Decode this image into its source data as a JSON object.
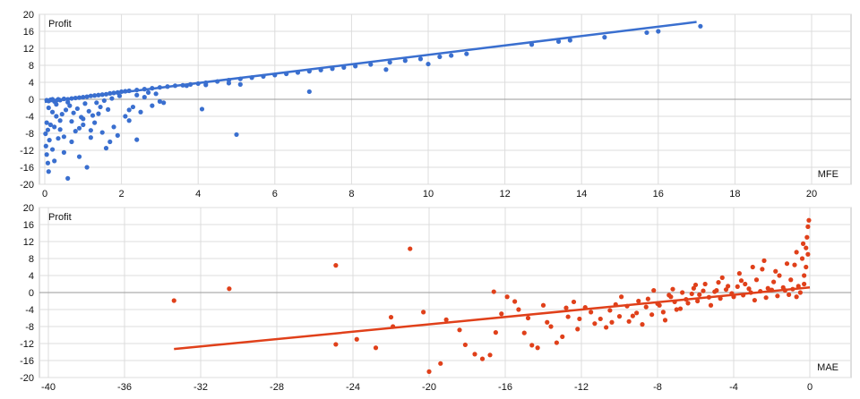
{
  "chart_data": [
    {
      "type": "scatter",
      "ylabel": "Profit",
      "xlabel": "MFE",
      "xlim": [
        0,
        20
      ],
      "ylim": [
        -20,
        20
      ],
      "xticks": [
        "0",
        "2",
        "4",
        "6",
        "8",
        "10",
        "12",
        "14",
        "16",
        "18",
        "20"
      ],
      "yticks": [
        "20",
        "16",
        "12",
        "8",
        "4",
        "0",
        "-4",
        "-8",
        "-12",
        "-16",
        "-20"
      ],
      "grid": true,
      "colors": {
        "points": "#3a6fcf",
        "trend": "#3a6fcf"
      },
      "trendline": {
        "x": [
          0,
          17.0
        ],
        "y": [
          -0.6,
          18.2
        ]
      },
      "series": [
        {
          "values": [
            [
              0.05,
              -0.2
            ],
            [
              0.1,
              -0.4
            ],
            [
              0.15,
              -0.1
            ],
            [
              0.2,
              0.0
            ],
            [
              0.25,
              -0.5
            ],
            [
              0.3,
              -0.3
            ],
            [
              0.35,
              0.0
            ],
            [
              0.4,
              -0.2
            ],
            [
              0.5,
              0.1
            ],
            [
              0.6,
              0.0
            ],
            [
              0.7,
              0.2
            ],
            [
              0.8,
              0.3
            ],
            [
              0.9,
              0.4
            ],
            [
              1.0,
              0.5
            ],
            [
              1.1,
              0.6
            ],
            [
              1.2,
              0.8
            ],
            [
              1.3,
              0.9
            ],
            [
              1.4,
              1.0
            ],
            [
              1.5,
              1.1
            ],
            [
              1.6,
              1.2
            ],
            [
              1.7,
              1.4
            ],
            [
              1.8,
              1.5
            ],
            [
              1.9,
              1.6
            ],
            [
              2.0,
              1.8
            ],
            [
              2.1,
              1.9
            ],
            [
              2.2,
              2.0
            ],
            [
              2.4,
              2.2
            ],
            [
              2.6,
              2.4
            ],
            [
              2.8,
              2.6
            ],
            [
              3.0,
              2.8
            ],
            [
              3.2,
              3.0
            ],
            [
              3.4,
              3.2
            ],
            [
              3.6,
              3.3
            ],
            [
              3.8,
              3.5
            ],
            [
              4.0,
              3.7
            ],
            [
              4.2,
              3.9
            ],
            [
              4.5,
              4.2
            ],
            [
              4.8,
              4.5
            ],
            [
              5.1,
              4.8
            ],
            [
              5.4,
              5.1
            ],
            [
              5.7,
              5.4
            ],
            [
              6.0,
              5.7
            ],
            [
              6.3,
              6.0
            ],
            [
              6.6,
              6.3
            ],
            [
              6.9,
              6.6
            ],
            [
              7.2,
              6.9
            ],
            [
              7.5,
              7.2
            ],
            [
              7.8,
              7.5
            ],
            [
              8.1,
              7.8
            ],
            [
              8.5,
              8.2
            ],
            [
              9.0,
              8.7
            ],
            [
              9.4,
              9.1
            ],
            [
              9.8,
              9.5
            ],
            [
              10.3,
              10.0
            ],
            [
              10.6,
              10.3
            ],
            [
              11.0,
              10.7
            ],
            [
              12.7,
              12.9
            ],
            [
              13.4,
              13.6
            ],
            [
              13.7,
              13.9
            ],
            [
              14.6,
              14.6
            ],
            [
              15.7,
              15.7
            ],
            [
              16.0,
              16.0
            ],
            [
              17.1,
              17.2
            ],
            [
              10.0,
              8.3
            ],
            [
              8.9,
              7.0
            ],
            [
              6.9,
              1.8
            ],
            [
              5.1,
              3.5
            ],
            [
              4.8,
              3.8
            ],
            [
              4.2,
              3.4
            ],
            [
              3.7,
              3.2
            ],
            [
              2.7,
              1.6
            ],
            [
              2.9,
              1.3
            ],
            [
              3.1,
              -0.8
            ],
            [
              2.4,
              1.0
            ],
            [
              0.02,
              -8.1
            ],
            [
              0.03,
              -11.0
            ],
            [
              0.05,
              -13.0
            ],
            [
              0.08,
              -15.0
            ],
            [
              0.1,
              -17.0
            ],
            [
              0.2,
              -11.8
            ],
            [
              0.25,
              -14.5
            ],
            [
              0.35,
              -9.2
            ],
            [
              0.4,
              -7.1
            ],
            [
              0.5,
              -12.5
            ],
            [
              0.6,
              -18.6
            ],
            [
              0.7,
              -10.0
            ],
            [
              0.8,
              -7.5
            ],
            [
              0.9,
              -13.5
            ],
            [
              1.0,
              -6.0
            ],
            [
              1.1,
              -16.0
            ],
            [
              1.2,
              -9.0
            ],
            [
              1.3,
              -5.5
            ],
            [
              1.5,
              -7.8
            ],
            [
              1.6,
              -11.5
            ],
            [
              1.7,
              -10.0
            ],
            [
              1.8,
              -6.5
            ],
            [
              1.9,
              -8.5
            ],
            [
              2.1,
              -4.0
            ],
            [
              2.2,
              -2.5
            ],
            [
              2.3,
              -1.8
            ],
            [
              2.4,
              -9.5
            ],
            [
              2.2,
              -5.0
            ],
            [
              2.5,
              -3.0
            ],
            [
              2.8,
              -1.5
            ],
            [
              3.0,
              -0.5
            ],
            [
              4.1,
              -2.3
            ],
            [
              5.0,
              -8.3
            ],
            [
              0.1,
              -2.0
            ],
            [
              0.2,
              -3.0
            ],
            [
              0.3,
              -4.0
            ],
            [
              0.4,
              -5.0
            ],
            [
              0.15,
              -6.0
            ],
            [
              0.25,
              -6.5
            ],
            [
              0.45,
              -3.5
            ],
            [
              0.55,
              -2.5
            ],
            [
              0.65,
              -1.5
            ],
            [
              0.75,
              -3.2
            ],
            [
              0.85,
              -2.2
            ],
            [
              0.95,
              -4.2
            ],
            [
              1.05,
              -1.0
            ],
            [
              1.15,
              -2.8
            ],
            [
              1.25,
              -3.8
            ],
            [
              1.35,
              -0.8
            ],
            [
              1.45,
              -1.8
            ],
            [
              1.55,
              -0.3
            ],
            [
              1.65,
              -2.4
            ],
            [
              1.75,
              0.2
            ],
            [
              0.05,
              -5.5
            ],
            [
              0.08,
              -7.2
            ],
            [
              0.12,
              -9.6
            ],
            [
              0.3,
              -1.2
            ],
            [
              0.6,
              -0.7
            ],
            [
              1.95,
              0.8
            ],
            [
              2.6,
              0.5
            ],
            [
              0.7,
              -5.2
            ],
            [
              1.0,
              -4.6
            ],
            [
              1.4,
              -3.4
            ],
            [
              0.5,
              -8.8
            ],
            [
              0.9,
              -6.8
            ],
            [
              1.2,
              -7.3
            ]
          ]
        }
      ]
    },
    {
      "type": "scatter",
      "ylabel": "Profit",
      "xlabel": "MAE",
      "xlim": [
        -40,
        0
      ],
      "ylim": [
        -20,
        20
      ],
      "xticks": [
        "-40",
        "-36",
        "-32",
        "-28",
        "-24",
        "-20",
        "-16",
        "-12",
        "-8",
        "-4",
        "0"
      ],
      "yticks": [
        "20",
        "16",
        "12",
        "8",
        "4",
        "0",
        "-4",
        "-8",
        "-12",
        "-16",
        "-20"
      ],
      "grid": true,
      "colors": {
        "points": "#e0401a",
        "trend": "#e0401a"
      },
      "trendline": {
        "x": [
          -33.4,
          0
        ],
        "y": [
          -13.3,
          1.2
        ]
      },
      "series": [
        {
          "values": [
            [
              -33.4,
              -1.9
            ],
            [
              -30.5,
              0.9
            ],
            [
              -24.9,
              6.4
            ],
            [
              -24.9,
              -12.2
            ],
            [
              -23.8,
              -11.0
            ],
            [
              -22.8,
              -13.0
            ],
            [
              -22.0,
              -5.8
            ],
            [
              -21.9,
              -8.0
            ],
            [
              -21.0,
              10.3
            ],
            [
              -20.3,
              -4.6
            ],
            [
              -20.0,
              -18.6
            ],
            [
              -19.4,
              -16.7
            ],
            [
              -19.1,
              -6.4
            ],
            [
              -18.4,
              -8.8
            ],
            [
              -18.1,
              -12.3
            ],
            [
              -17.6,
              -14.5
            ],
            [
              -17.2,
              -15.6
            ],
            [
              -16.8,
              -14.7
            ],
            [
              -16.5,
              -9.4
            ],
            [
              -16.2,
              -5.0
            ],
            [
              -16.6,
              0.2
            ],
            [
              -15.9,
              -1.0
            ],
            [
              -15.5,
              -2.1
            ],
            [
              -15.3,
              -4.0
            ],
            [
              -15.0,
              -9.5
            ],
            [
              -14.6,
              -12.4
            ],
            [
              -14.3,
              -13.0
            ],
            [
              -14.0,
              -3.0
            ],
            [
              -13.6,
              -8.0
            ],
            [
              -13.3,
              -11.8
            ],
            [
              -13.0,
              -10.4
            ],
            [
              -12.7,
              -5.7
            ],
            [
              -12.4,
              -2.2
            ],
            [
              -12.1,
              -6.2
            ],
            [
              -11.8,
              -3.5
            ],
            [
              -11.3,
              -7.3
            ],
            [
              -11.0,
              -6.2
            ],
            [
              -10.7,
              -8.2
            ],
            [
              -10.5,
              -4.2
            ],
            [
              -10.2,
              -2.8
            ],
            [
              -9.9,
              -1.0
            ],
            [
              -9.6,
              -3.2
            ],
            [
              -9.3,
              -5.5
            ],
            [
              -9.0,
              -2.0
            ],
            [
              -8.8,
              -7.5
            ],
            [
              -8.5,
              -1.5
            ],
            [
              -8.2,
              0.5
            ],
            [
              -7.9,
              -3.0
            ],
            [
              -7.6,
              -6.5
            ],
            [
              -7.3,
              -1.0
            ],
            [
              -7.0,
              -4.0
            ],
            [
              -6.7,
              0.0
            ],
            [
              -6.4,
              -2.5
            ],
            [
              -6.1,
              1.0
            ],
            [
              -5.8,
              -0.5
            ],
            [
              -5.5,
              2.0
            ],
            [
              -5.2,
              -3.0
            ],
            [
              -4.9,
              0.5
            ],
            [
              -4.6,
              3.5
            ],
            [
              -4.3,
              1.5
            ],
            [
              -4.0,
              -1.0
            ],
            [
              -3.7,
              4.5
            ],
            [
              -3.4,
              2.0
            ],
            [
              -3.1,
              0.0
            ],
            [
              -2.8,
              3.0
            ],
            [
              -2.5,
              5.5
            ],
            [
              -2.2,
              1.0
            ],
            [
              -1.9,
              2.5
            ],
            [
              -1.6,
              4.0
            ],
            [
              -1.3,
              0.5
            ],
            [
              -1.0,
              3.0
            ],
            [
              -0.8,
              6.5
            ],
            [
              -0.6,
              1.5
            ],
            [
              -0.4,
              8.0
            ],
            [
              -0.3,
              4.0
            ],
            [
              -0.2,
              10.5
            ],
            [
              -0.15,
              13.0
            ],
            [
              -0.1,
              15.5
            ],
            [
              -0.05,
              17.0
            ],
            [
              -0.1,
              9.0
            ],
            [
              -0.2,
              6.0
            ],
            [
              -0.3,
              2.0
            ],
            [
              -0.5,
              0.0
            ],
            [
              -0.7,
              -1.0
            ],
            [
              -0.9,
              0.8
            ],
            [
              -1.1,
              -0.5
            ],
            [
              -1.4,
              1.2
            ],
            [
              -1.7,
              -0.8
            ],
            [
              -2.0,
              0.6
            ],
            [
              -2.3,
              -1.2
            ],
            [
              -2.6,
              0.3
            ],
            [
              -2.9,
              -1.8
            ],
            [
              -3.2,
              0.9
            ],
            [
              -3.5,
              -0.6
            ],
            [
              -3.8,
              1.4
            ],
            [
              -4.1,
              -0.2
            ],
            [
              -4.4,
              0.7
            ],
            [
              -4.7,
              -1.4
            ],
            [
              -5.0,
              0.2
            ],
            [
              -5.3,
              -1.1
            ],
            [
              -5.6,
              0.4
            ],
            [
              -5.9,
              -2.0
            ],
            [
              -6.2,
              -0.3
            ],
            [
              -6.5,
              -1.6
            ],
            [
              -6.8,
              -3.8
            ],
            [
              -7.1,
              -2.2
            ],
            [
              -7.4,
              -0.6
            ],
            [
              -7.7,
              -4.6
            ],
            [
              -8.0,
              -2.6
            ],
            [
              -8.3,
              -5.2
            ],
            [
              -8.6,
              -3.4
            ],
            [
              -9.1,
              -4.8
            ],
            [
              -9.5,
              -6.8
            ],
            [
              -10.0,
              -5.6
            ],
            [
              -10.4,
              -7.0
            ],
            [
              -11.5,
              -4.6
            ],
            [
              -12.2,
              -8.6
            ],
            [
              -12.8,
              -3.6
            ],
            [
              -13.8,
              -7.0
            ],
            [
              -14.8,
              -6.0
            ],
            [
              -3.0,
              6.0
            ],
            [
              -2.4,
              7.5
            ],
            [
              -1.8,
              5.0
            ],
            [
              -1.2,
              6.8
            ],
            [
              -0.7,
              9.5
            ],
            [
              -0.35,
              11.5
            ],
            [
              -3.6,
              2.8
            ],
            [
              -4.8,
              2.4
            ],
            [
              -6.0,
              1.8
            ],
            [
              -7.2,
              0.8
            ]
          ]
        }
      ]
    }
  ]
}
